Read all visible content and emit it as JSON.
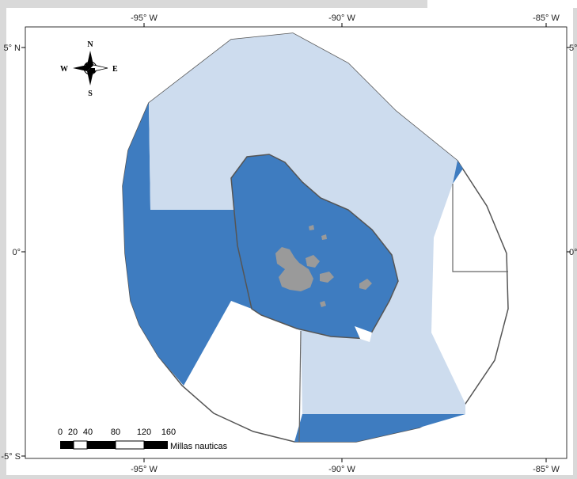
{
  "map": {
    "axis_labels": {
      "top": [
        "-95° W",
        "-90° W",
        "-85° W"
      ],
      "bottom": [
        "-95° W",
        "-90° W",
        "-85° W"
      ],
      "left": [
        "5° N",
        "0°",
        "-5° S"
      ],
      "right": [
        "5°",
        "0°"
      ]
    },
    "compass": {
      "n": "N",
      "s": "S",
      "e": "E",
      "w": "W"
    },
    "scale_bar": {
      "ticks": [
        "0",
        "20",
        "40",
        "80",
        "120",
        "160"
      ],
      "unit": "Millas nauticas"
    },
    "colors": {
      "dark_zone": "#3e7cc0",
      "light_zone": "#cddcee",
      "island": "#9a9a9a",
      "outline": "#555555",
      "background": "#d9d9d9"
    }
  }
}
